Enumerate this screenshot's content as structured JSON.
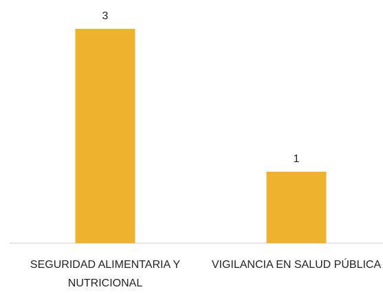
{
  "chart_data": {
    "type": "bar",
    "categories": [
      "SEGURIDAD ALIMENTARIA Y NUTRICIONAL",
      "VIGILANCIA EN SALUD PÚBLICA"
    ],
    "values": [
      3,
      1
    ],
    "color": "#EDB32E",
    "ylim": [
      0,
      3
    ]
  }
}
